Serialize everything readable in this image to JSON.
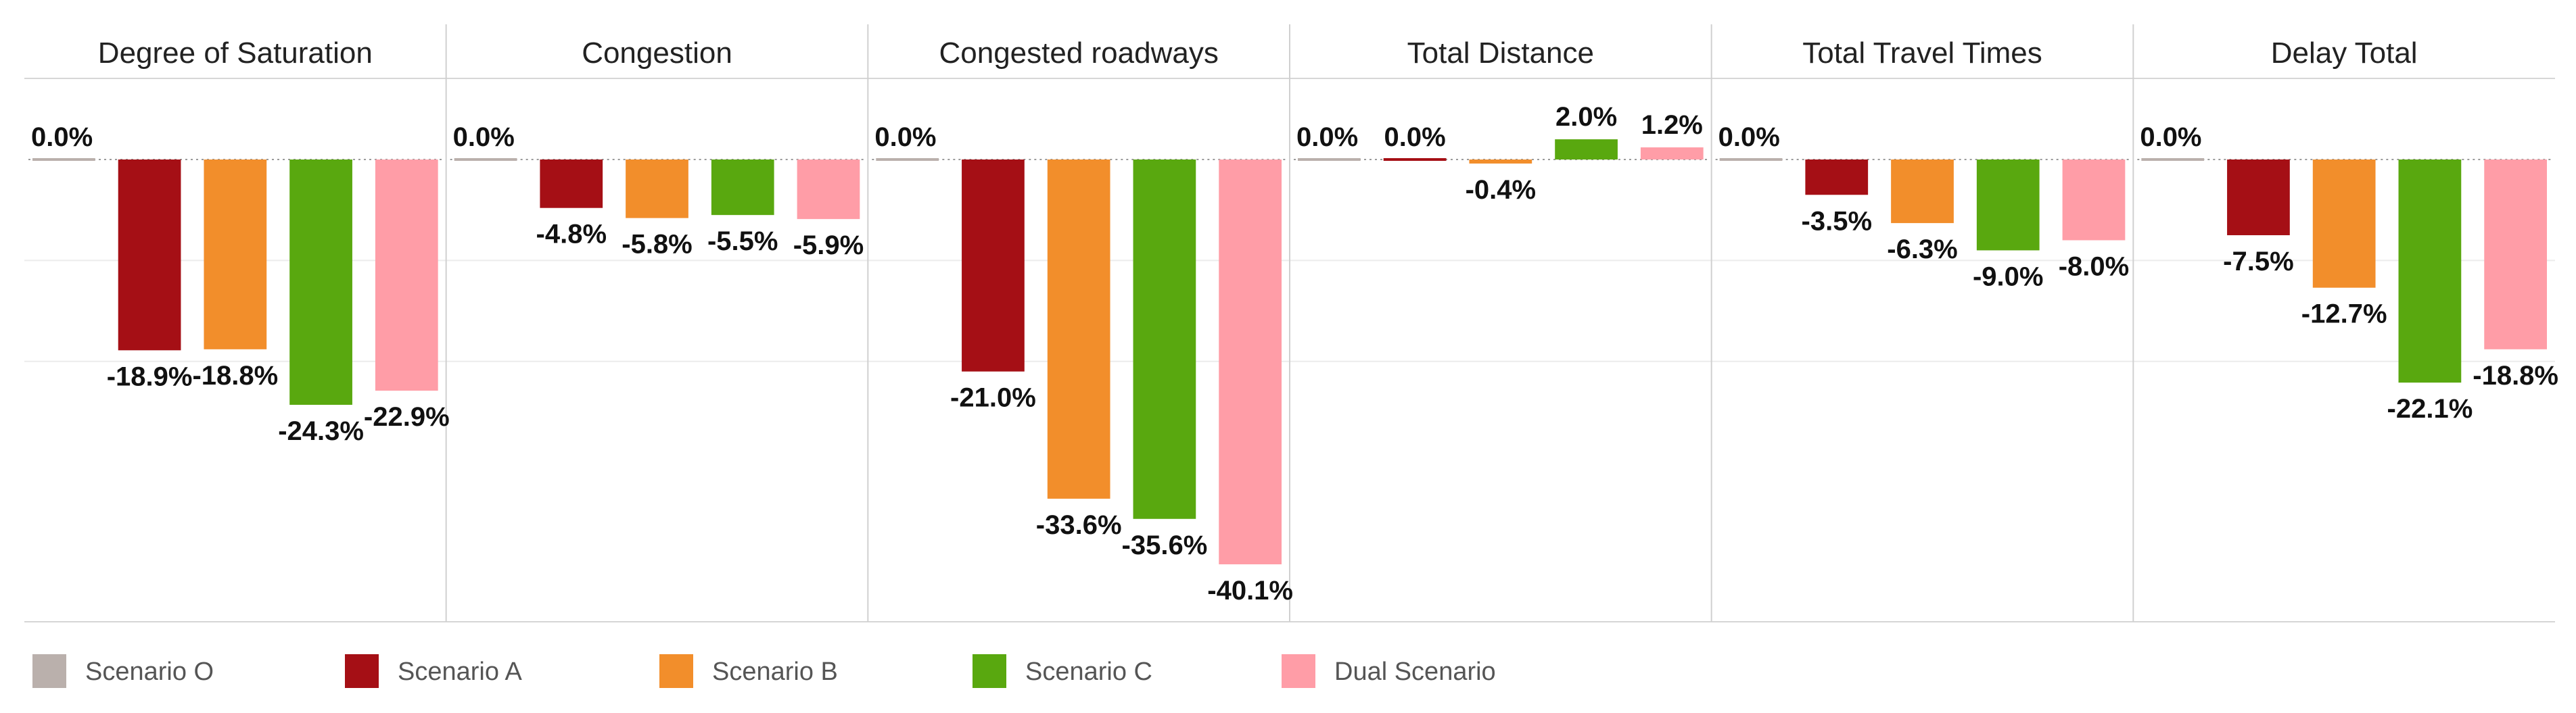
{
  "chart_data": {
    "type": "bar",
    "panels": [
      {
        "title": "Degree of Saturation",
        "values": [
          0.0,
          -18.9,
          -18.8,
          -24.3,
          -22.9
        ],
        "labels": [
          "0.0%",
          "-18.9%",
          "-18.8%",
          "-24.3%",
          "-22.9%"
        ]
      },
      {
        "title": "Congestion",
        "values": [
          0.0,
          -4.8,
          -5.8,
          -5.5,
          -5.9
        ],
        "labels": [
          "0.0%",
          "-4.8%",
          "-5.8%",
          "-5.5%",
          "-5.9%"
        ]
      },
      {
        "title": "Congested roadways",
        "values": [
          0.0,
          -21.0,
          -33.6,
          -35.6,
          -40.1
        ],
        "labels": [
          "0.0%",
          "-21.0%",
          "-33.6%",
          "-35.6%",
          "-40.1%"
        ]
      },
      {
        "title": "Total Distance",
        "values": [
          0.0,
          0.0,
          -0.4,
          2.0,
          1.2
        ],
        "labels": [
          "0.0%",
          "0.0%",
          "-0.4%",
          "2.0%",
          "1.2%"
        ]
      },
      {
        "title": "Total Travel Times",
        "values": [
          0.0,
          -3.5,
          -6.3,
          -9.0,
          -8.0
        ],
        "labels": [
          "0.0%",
          "-3.5%",
          "-6.3%",
          "-9.0%",
          "-8.0%"
        ]
      },
      {
        "title": "Delay Total",
        "values": [
          0.0,
          -7.5,
          -12.7,
          -22.1,
          -18.8
        ],
        "labels": [
          "0.0%",
          "-7.5%",
          "-12.7%",
          "-22.1%",
          "-18.8%"
        ]
      }
    ],
    "series": [
      {
        "name": "Scenario O",
        "color": "#bab0ac"
      },
      {
        "name": "Scenario A",
        "color": "#a50f15"
      },
      {
        "name": "Scenario B",
        "color": "#f28e2b"
      },
      {
        "name": "Scenario C",
        "color": "#59a80f"
      },
      {
        "name": "Dual Scenario",
        "color": "#ff9da7"
      }
    ],
    "ylim": [
      -45,
      4
    ],
    "grid": true,
    "legend_position": "bottom-left"
  }
}
